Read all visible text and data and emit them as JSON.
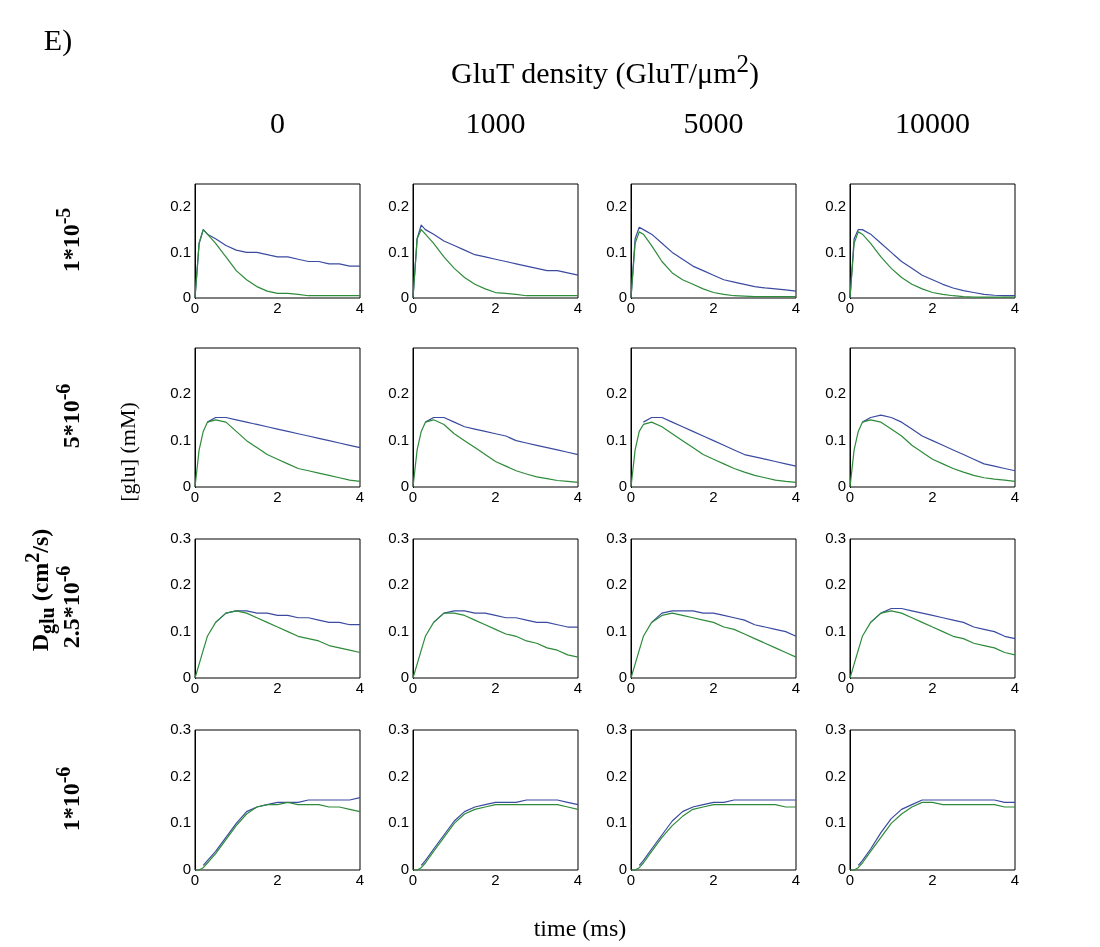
{
  "chart_data": [
    {
      "type": "line",
      "title": "0",
      "ylabel": "1*10$^{-5}$",
      "x": [
        0,
        0.1,
        0.2,
        0.3,
        0.5,
        0.75,
        1,
        1.25,
        1.5,
        1.75,
        2,
        2.25,
        2.5,
        2.75,
        3,
        3.25,
        3.5,
        3.75,
        4
      ],
      "xlim": [
        0,
        4
      ],
      "xticks": [
        0,
        2,
        4
      ],
      "ylim": [
        0,
        0.25
      ],
      "yticks": [
        0,
        0.1,
        0.2
      ],
      "grid": false,
      "legend": false,
      "series": [
        {
          "color": "#3a4ba0",
          "values": [
            0,
            0.12,
            0.15,
            0.14,
            0.13,
            0.115,
            0.105,
            0.1,
            0.1,
            0.095,
            0.09,
            0.09,
            0.085,
            0.08,
            0.08,
            0.075,
            0.075,
            0.07,
            0.07
          ]
        },
        {
          "color": "#2e8b3a",
          "values": [
            0,
            0.12,
            0.15,
            0.14,
            0.12,
            0.09,
            0.06,
            0.04,
            0.025,
            0.015,
            0.01,
            0.01,
            0.008,
            0.005,
            0.005,
            0.005,
            0.005,
            0.005,
            0.005
          ]
        }
      ]
    },
    {
      "type": "line",
      "title": "1000",
      "x": [
        0,
        0.1,
        0.2,
        0.3,
        0.5,
        0.75,
        1,
        1.25,
        1.5,
        1.75,
        2,
        2.25,
        2.5,
        2.75,
        3,
        3.25,
        3.5,
        3.75,
        4
      ],
      "xlim": [
        0,
        4
      ],
      "xticks": [
        0,
        2,
        4
      ],
      "ylim": [
        0,
        0.25
      ],
      "yticks": [
        0,
        0.1,
        0.2
      ],
      "grid": false,
      "legend": false,
      "series": [
        {
          "color": "#3a4ba0",
          "values": [
            0,
            0.13,
            0.16,
            0.15,
            0.14,
            0.125,
            0.115,
            0.105,
            0.095,
            0.09,
            0.085,
            0.08,
            0.075,
            0.07,
            0.065,
            0.06,
            0.06,
            0.055,
            0.05
          ]
        },
        {
          "color": "#2e8b3a",
          "values": [
            0,
            0.13,
            0.15,
            0.14,
            0.12,
            0.09,
            0.065,
            0.045,
            0.03,
            0.02,
            0.012,
            0.01,
            0.008,
            0.005,
            0.005,
            0.005,
            0.005,
            0.005,
            0.005
          ]
        }
      ]
    },
    {
      "type": "line",
      "title": "5000",
      "x": [
        0,
        0.1,
        0.2,
        0.3,
        0.5,
        0.75,
        1,
        1.25,
        1.5,
        1.75,
        2,
        2.25,
        2.5,
        2.75,
        3,
        3.25,
        3.5,
        3.75,
        4
      ],
      "xlim": [
        0,
        4
      ],
      "xticks": [
        0,
        2,
        4
      ],
      "ylim": [
        0,
        0.25
      ],
      "yticks": [
        0,
        0.1,
        0.2
      ],
      "grid": false,
      "legend": false,
      "series": [
        {
          "color": "#3a4ba0",
          "values": [
            0,
            0.13,
            0.155,
            0.15,
            0.14,
            0.12,
            0.1,
            0.085,
            0.07,
            0.06,
            0.05,
            0.04,
            0.035,
            0.03,
            0.025,
            0.022,
            0.02,
            0.018,
            0.015
          ]
        },
        {
          "color": "#2e8b3a",
          "values": [
            0,
            0.12,
            0.145,
            0.14,
            0.115,
            0.08,
            0.055,
            0.04,
            0.03,
            0.02,
            0.012,
            0.008,
            0.005,
            0.004,
            0.003,
            0.003,
            0.003,
            0.003,
            0.003
          ]
        }
      ]
    },
    {
      "type": "line",
      "title": "10000",
      "x": [
        0,
        0.1,
        0.2,
        0.3,
        0.5,
        0.75,
        1,
        1.25,
        1.5,
        1.75,
        2,
        2.25,
        2.5,
        2.75,
        3,
        3.25,
        3.5,
        3.75,
        4
      ],
      "xlim": [
        0,
        4
      ],
      "xticks": [
        0,
        2,
        4
      ],
      "ylim": [
        0,
        0.25
      ],
      "yticks": [
        0,
        0.1,
        0.2
      ],
      "grid": false,
      "legend": false,
      "series": [
        {
          "color": "#3a4ba0",
          "values": [
            0,
            0.13,
            0.15,
            0.15,
            0.14,
            0.12,
            0.1,
            0.08,
            0.065,
            0.05,
            0.04,
            0.03,
            0.022,
            0.016,
            0.012,
            0.008,
            0.006,
            0.005,
            0.005
          ]
        },
        {
          "color": "#2e8b3a",
          "values": [
            0,
            0.12,
            0.145,
            0.14,
            0.12,
            0.09,
            0.065,
            0.045,
            0.03,
            0.02,
            0.012,
            0.008,
            0.005,
            0.003,
            0.002,
            0.002,
            0.002,
            0.002,
            0.002
          ]
        }
      ]
    },
    {
      "type": "line",
      "ylabel": "5*10$^{-6}$",
      "x": [
        0,
        0.1,
        0.2,
        0.3,
        0.5,
        0.75,
        1,
        1.25,
        1.5,
        1.75,
        2,
        2.25,
        2.5,
        2.75,
        3,
        3.25,
        3.5,
        3.75,
        4
      ],
      "xlim": [
        0,
        4
      ],
      "xticks": [
        0,
        2,
        4
      ],
      "ylim": [
        0,
        0.3
      ],
      "yticks": [
        0,
        0.1,
        0.2
      ],
      "grid": false,
      "legend": false,
      "series": [
        {
          "color": "#3a4ba0",
          "values": [
            null,
            null,
            null,
            0.14,
            0.15,
            0.15,
            0.145,
            0.14,
            0.135,
            0.13,
            0.125,
            0.12,
            0.115,
            0.11,
            0.105,
            0.1,
            0.095,
            0.09,
            0.085
          ]
        },
        {
          "color": "#2e8b3a",
          "values": [
            0,
            0.08,
            0.12,
            0.14,
            0.145,
            0.14,
            0.12,
            0.1,
            0.085,
            0.07,
            0.06,
            0.05,
            0.04,
            0.035,
            0.03,
            0.025,
            0.02,
            0.015,
            0.012
          ]
        }
      ]
    },
    {
      "type": "line",
      "x": [
        0,
        0.1,
        0.2,
        0.3,
        0.5,
        0.75,
        1,
        1.25,
        1.5,
        1.75,
        2,
        2.25,
        2.5,
        2.75,
        3,
        3.25,
        3.5,
        3.75,
        4
      ],
      "xlim": [
        0,
        4
      ],
      "xticks": [
        0,
        2,
        4
      ],
      "ylim": [
        0,
        0.3
      ],
      "yticks": [
        0,
        0.1,
        0.2
      ],
      "grid": false,
      "legend": false,
      "series": [
        {
          "color": "#3a4ba0",
          "values": [
            null,
            null,
            null,
            0.14,
            0.15,
            0.15,
            0.14,
            0.13,
            0.125,
            0.12,
            0.115,
            0.11,
            0.1,
            0.095,
            0.09,
            0.085,
            0.08,
            0.075,
            0.07
          ]
        },
        {
          "color": "#2e8b3a",
          "values": [
            0,
            0.08,
            0.12,
            0.14,
            0.145,
            0.135,
            0.115,
            0.1,
            0.085,
            0.07,
            0.055,
            0.045,
            0.035,
            0.028,
            0.022,
            0.018,
            0.014,
            0.012,
            0.01
          ]
        }
      ]
    },
    {
      "type": "line",
      "x": [
        0,
        0.1,
        0.2,
        0.3,
        0.5,
        0.75,
        1,
        1.25,
        1.5,
        1.75,
        2,
        2.25,
        2.5,
        2.75,
        3,
        3.25,
        3.5,
        3.75,
        4
      ],
      "xlim": [
        0,
        4
      ],
      "xticks": [
        0,
        2,
        4
      ],
      "ylim": [
        0,
        0.3
      ],
      "yticks": [
        0,
        0.1,
        0.2
      ],
      "grid": false,
      "legend": false,
      "series": [
        {
          "color": "#3a4ba0",
          "values": [
            null,
            null,
            null,
            0.14,
            0.15,
            0.15,
            0.14,
            0.13,
            0.12,
            0.11,
            0.1,
            0.09,
            0.08,
            0.07,
            0.065,
            0.06,
            0.055,
            0.05,
            0.045
          ]
        },
        {
          "color": "#2e8b3a",
          "values": [
            0,
            0.08,
            0.12,
            0.135,
            0.14,
            0.13,
            0.115,
            0.1,
            0.085,
            0.07,
            0.06,
            0.05,
            0.04,
            0.032,
            0.025,
            0.02,
            0.015,
            0.012,
            0.01
          ]
        }
      ]
    },
    {
      "type": "line",
      "x": [
        0,
        0.1,
        0.2,
        0.3,
        0.5,
        0.75,
        1,
        1.25,
        1.5,
        1.75,
        2,
        2.25,
        2.5,
        2.75,
        3,
        3.25,
        3.5,
        3.75,
        4
      ],
      "xlim": [
        0,
        4
      ],
      "xticks": [
        0,
        2,
        4
      ],
      "ylim": [
        0,
        0.3
      ],
      "yticks": [
        0,
        0.1,
        0.2
      ],
      "grid": false,
      "legend": false,
      "series": [
        {
          "color": "#3a4ba0",
          "values": [
            null,
            null,
            null,
            0.14,
            0.15,
            0.155,
            0.15,
            0.14,
            0.125,
            0.11,
            0.1,
            0.09,
            0.08,
            0.07,
            0.06,
            0.05,
            0.045,
            0.04,
            0.035
          ]
        },
        {
          "color": "#2e8b3a",
          "values": [
            0,
            0.08,
            0.12,
            0.14,
            0.145,
            0.14,
            0.125,
            0.11,
            0.09,
            0.075,
            0.06,
            0.05,
            0.04,
            0.032,
            0.025,
            0.02,
            0.017,
            0.015,
            0.012
          ]
        }
      ]
    },
    {
      "type": "line",
      "ylabel": "2.5*10$^{-6}$",
      "x": [
        0,
        0.1,
        0.2,
        0.3,
        0.5,
        0.75,
        1,
        1.25,
        1.5,
        1.75,
        2,
        2.25,
        2.5,
        2.75,
        3,
        3.25,
        3.5,
        3.75,
        4
      ],
      "xlim": [
        0,
        4
      ],
      "xticks": [
        0,
        2,
        4
      ],
      "ylim": [
        0,
        0.3
      ],
      "yticks": [
        0,
        0.1,
        0.2,
        0.3
      ],
      "grid": false,
      "legend": false,
      "series": [
        {
          "color": "#3a4ba0",
          "values": [
            null,
            null,
            null,
            null,
            0.12,
            0.14,
            0.145,
            0.145,
            0.14,
            0.14,
            0.135,
            0.135,
            0.13,
            0.13,
            0.125,
            0.12,
            0.12,
            0.115,
            0.115
          ]
        },
        {
          "color": "#2e8b3a",
          "values": [
            0,
            0.03,
            0.06,
            0.09,
            0.12,
            0.14,
            0.145,
            0.14,
            0.13,
            0.12,
            0.11,
            0.1,
            0.09,
            0.085,
            0.08,
            0.07,
            0.065,
            0.06,
            0.055
          ]
        }
      ]
    },
    {
      "type": "line",
      "x": [
        0,
        0.1,
        0.2,
        0.3,
        0.5,
        0.75,
        1,
        1.25,
        1.5,
        1.75,
        2,
        2.25,
        2.5,
        2.75,
        3,
        3.25,
        3.5,
        3.75,
        4
      ],
      "xlim": [
        0,
        4
      ],
      "xticks": [
        0,
        2,
        4
      ],
      "ylim": [
        0,
        0.3
      ],
      "yticks": [
        0,
        0.1,
        0.2,
        0.3
      ],
      "grid": false,
      "legend": false,
      "series": [
        {
          "color": "#3a4ba0",
          "values": [
            null,
            null,
            null,
            null,
            0.12,
            0.14,
            0.145,
            0.145,
            0.14,
            0.14,
            0.135,
            0.13,
            0.13,
            0.125,
            0.12,
            0.12,
            0.115,
            0.11,
            0.11
          ]
        },
        {
          "color": "#2e8b3a",
          "values": [
            0,
            0.03,
            0.06,
            0.09,
            0.12,
            0.14,
            0.14,
            0.135,
            0.125,
            0.115,
            0.105,
            0.095,
            0.09,
            0.08,
            0.075,
            0.065,
            0.06,
            0.05,
            0.045
          ]
        }
      ]
    },
    {
      "type": "line",
      "x": [
        0,
        0.1,
        0.2,
        0.3,
        0.5,
        0.75,
        1,
        1.25,
        1.5,
        1.75,
        2,
        2.25,
        2.5,
        2.75,
        3,
        3.25,
        3.5,
        3.75,
        4
      ],
      "xlim": [
        0,
        4
      ],
      "xticks": [
        0,
        2,
        4
      ],
      "ylim": [
        0,
        0.3
      ],
      "yticks": [
        0,
        0.1,
        0.2,
        0.3
      ],
      "grid": false,
      "legend": false,
      "series": [
        {
          "color": "#3a4ba0",
          "values": [
            null,
            null,
            null,
            null,
            0.12,
            0.14,
            0.145,
            0.145,
            0.145,
            0.14,
            0.14,
            0.135,
            0.13,
            0.125,
            0.115,
            0.11,
            0.105,
            0.1,
            0.09
          ]
        },
        {
          "color": "#2e8b3a",
          "values": [
            0,
            0.03,
            0.06,
            0.09,
            0.12,
            0.135,
            0.14,
            0.135,
            0.13,
            0.125,
            0.12,
            0.11,
            0.105,
            0.095,
            0.085,
            0.075,
            0.065,
            0.055,
            0.045
          ]
        }
      ]
    },
    {
      "type": "line",
      "x": [
        0,
        0.1,
        0.2,
        0.3,
        0.5,
        0.75,
        1,
        1.25,
        1.5,
        1.75,
        2,
        2.25,
        2.5,
        2.75,
        3,
        3.25,
        3.5,
        3.75,
        4
      ],
      "xlim": [
        0,
        4
      ],
      "xticks": [
        0,
        2,
        4
      ],
      "ylim": [
        0,
        0.3
      ],
      "yticks": [
        0,
        0.1,
        0.2,
        0.3
      ],
      "grid": false,
      "legend": false,
      "series": [
        {
          "color": "#3a4ba0",
          "values": [
            null,
            null,
            null,
            null,
            0.12,
            0.14,
            0.15,
            0.15,
            0.145,
            0.14,
            0.135,
            0.13,
            0.125,
            0.12,
            0.11,
            0.105,
            0.1,
            0.09,
            0.085
          ]
        },
        {
          "color": "#2e8b3a",
          "values": [
            0,
            0.03,
            0.06,
            0.09,
            0.12,
            0.14,
            0.145,
            0.14,
            0.13,
            0.12,
            0.11,
            0.1,
            0.09,
            0.085,
            0.075,
            0.07,
            0.065,
            0.055,
            0.05
          ]
        }
      ]
    },
    {
      "type": "line",
      "ylabel": "1*10$^{-6}$",
      "x": [
        0,
        0.1,
        0.2,
        0.3,
        0.5,
        0.75,
        1,
        1.25,
        1.5,
        1.75,
        2,
        2.25,
        2.5,
        2.75,
        3,
        3.25,
        3.5,
        3.75,
        4
      ],
      "xlim": [
        0,
        4
      ],
      "xticks": [
        0,
        2,
        4
      ],
      "ylim": [
        0,
        0.3
      ],
      "yticks": [
        0,
        0.1,
        0.2,
        0.3
      ],
      "grid": false,
      "legend": false,
      "series": [
        {
          "color": "#3a4ba0",
          "values": [
            null,
            null,
            0.01,
            0.02,
            0.04,
            0.07,
            0.1,
            0.125,
            0.135,
            0.14,
            0.145,
            0.145,
            0.145,
            0.15,
            0.15,
            0.15,
            0.15,
            0.15,
            0.155
          ]
        },
        {
          "color": "#2e8b3a",
          "values": [
            0,
            0,
            0.005,
            0.015,
            0.035,
            0.065,
            0.095,
            0.12,
            0.135,
            0.14,
            0.14,
            0.145,
            0.14,
            0.14,
            0.14,
            0.135,
            0.135,
            0.13,
            0.125
          ]
        }
      ]
    },
    {
      "type": "line",
      "x": [
        0,
        0.1,
        0.2,
        0.3,
        0.5,
        0.75,
        1,
        1.25,
        1.5,
        1.75,
        2,
        2.25,
        2.5,
        2.75,
        3,
        3.25,
        3.5,
        3.75,
        4
      ],
      "xlim": [
        0,
        4
      ],
      "xticks": [
        0,
        2,
        4
      ],
      "ylim": [
        0,
        0.3
      ],
      "yticks": [
        0,
        0.1,
        0.2,
        0.3
      ],
      "grid": false,
      "legend": false,
      "series": [
        {
          "color": "#3a4ba0",
          "values": [
            null,
            null,
            0.01,
            0.02,
            0.045,
            0.075,
            0.105,
            0.125,
            0.135,
            0.14,
            0.145,
            0.145,
            0.145,
            0.15,
            0.15,
            0.15,
            0.15,
            0.145,
            0.14
          ]
        },
        {
          "color": "#2e8b3a",
          "values": [
            0,
            0,
            0.005,
            0.015,
            0.04,
            0.07,
            0.1,
            0.12,
            0.13,
            0.135,
            0.14,
            0.14,
            0.14,
            0.14,
            0.14,
            0.14,
            0.14,
            0.135,
            0.13
          ]
        }
      ]
    },
    {
      "type": "line",
      "x": [
        0,
        0.1,
        0.2,
        0.3,
        0.5,
        0.75,
        1,
        1.25,
        1.5,
        1.75,
        2,
        2.25,
        2.5,
        2.75,
        3,
        3.25,
        3.5,
        3.75,
        4
      ],
      "xlim": [
        0,
        4
      ],
      "xticks": [
        0,
        2,
        4
      ],
      "ylim": [
        0,
        0.3
      ],
      "yticks": [
        0,
        0.1,
        0.2,
        0.3
      ],
      "grid": false,
      "legend": false,
      "series": [
        {
          "color": "#3a4ba0",
          "values": [
            null,
            null,
            0.01,
            0.02,
            0.045,
            0.075,
            0.105,
            0.125,
            0.135,
            0.14,
            0.145,
            0.145,
            0.15,
            0.15,
            0.15,
            0.15,
            0.15,
            0.15,
            0.15
          ]
        },
        {
          "color": "#2e8b3a",
          "values": [
            0,
            0,
            0.005,
            0.015,
            0.04,
            0.07,
            0.095,
            0.115,
            0.13,
            0.135,
            0.14,
            0.14,
            0.14,
            0.14,
            0.14,
            0.14,
            0.14,
            0.135,
            0.135
          ]
        }
      ]
    },
    {
      "type": "line",
      "x": [
        0,
        0.1,
        0.2,
        0.3,
        0.5,
        0.75,
        1,
        1.25,
        1.5,
        1.75,
        2,
        2.25,
        2.5,
        2.75,
        3,
        3.25,
        3.5,
        3.75,
        4
      ],
      "xlim": [
        0,
        4
      ],
      "xticks": [
        0,
        2,
        4
      ],
      "ylim": [
        0,
        0.3
      ],
      "yticks": [
        0,
        0.1,
        0.2,
        0.3
      ],
      "grid": false,
      "legend": false,
      "series": [
        {
          "color": "#3a4ba0",
          "values": [
            null,
            null,
            0.01,
            0.02,
            0.045,
            0.08,
            0.11,
            0.13,
            0.14,
            0.15,
            0.15,
            0.15,
            0.15,
            0.15,
            0.15,
            0.15,
            0.15,
            0.145,
            0.145
          ]
        },
        {
          "color": "#2e8b3a",
          "values": [
            0,
            0,
            0.005,
            0.015,
            0.04,
            0.07,
            0.1,
            0.12,
            0.135,
            0.145,
            0.145,
            0.14,
            0.14,
            0.14,
            0.14,
            0.14,
            0.14,
            0.135,
            0.135
          ]
        }
      ]
    },
    {
      "type": "other",
      "title": "GluT density (GluT/μm$^{2}$)",
      "annotations": [
        "E)",
        "D$_{glu}$ (cm$^{2}$/s)",
        "[glu] (mM)",
        "time (ms)"
      ]
    }
  ]
}
